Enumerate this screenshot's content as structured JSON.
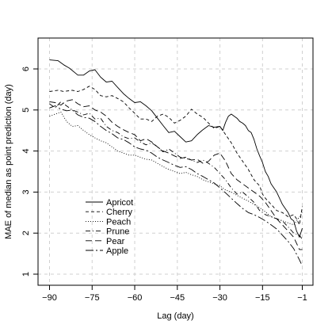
{
  "chart_data": {
    "type": "line",
    "title": "",
    "xlabel": "Lag (day)",
    "ylabel": "MAE of median as point prediction (day)",
    "xlim": [
      -90,
      -1
    ],
    "ylim": [
      1,
      6.5
    ],
    "xticks": [
      -90,
      -75,
      -60,
      -45,
      -30,
      -15,
      -1
    ],
    "xtick_labels": [
      "−90",
      "−75",
      "−60",
      "−45",
      "−30",
      "−15",
      "−1"
    ],
    "yticks": [
      1,
      2,
      3,
      4,
      5,
      6
    ],
    "ytick_labels": [
      "1",
      "2",
      "3",
      "4",
      "5",
      "6"
    ],
    "grid": true,
    "legend_position": "bottom-left",
    "series": [
      {
        "name": "Apricot",
        "dash": "none",
        "x": [
          -90,
          -87,
          -85,
          -83,
          -80,
          -78,
          -76,
          -74,
          -72,
          -70,
          -68,
          -66,
          -64,
          -62,
          -60,
          -58,
          -56,
          -54,
          -52,
          -50,
          -48,
          -46,
          -44,
          -42,
          -40,
          -38,
          -36,
          -34,
          -32,
          -30,
          -29,
          -28,
          -27,
          -26,
          -25,
          -24,
          -23,
          -22,
          -21,
          -20,
          -19,
          -18,
          -17,
          -16,
          -15,
          -14,
          -13,
          -12,
          -11,
          -10,
          -9,
          -8,
          -7,
          -6,
          -5,
          -4,
          -3,
          -2,
          -1
        ],
        "y": [
          6.22,
          6.2,
          6.1,
          6.02,
          5.85,
          5.85,
          5.95,
          5.98,
          5.8,
          5.68,
          5.7,
          5.55,
          5.4,
          5.28,
          5.18,
          5.2,
          5.1,
          4.98,
          4.8,
          4.62,
          4.45,
          4.48,
          4.35,
          4.22,
          4.25,
          4.4,
          4.52,
          4.62,
          4.58,
          4.6,
          4.5,
          4.7,
          4.85,
          4.9,
          4.85,
          4.8,
          4.72,
          4.68,
          4.62,
          4.5,
          4.45,
          4.28,
          4.05,
          3.88,
          3.72,
          3.5,
          3.38,
          3.2,
          3.1,
          3.0,
          2.85,
          2.7,
          2.6,
          2.5,
          2.35,
          2.3,
          2.05,
          1.9,
          2.12
        ]
      },
      {
        "name": "Cherry",
        "dash": "4,3",
        "x": [
          -90,
          -87,
          -85,
          -82,
          -80,
          -78,
          -76,
          -74,
          -72,
          -70,
          -68,
          -66,
          -64,
          -62,
          -60,
          -58,
          -56,
          -54,
          -52,
          -50,
          -48,
          -46,
          -44,
          -42,
          -40,
          -38,
          -36,
          -34,
          -32,
          -30,
          -28,
          -26,
          -24,
          -22,
          -20,
          -18,
          -16,
          -15,
          -14,
          -12,
          -10,
          -8,
          -6,
          -4,
          -3,
          -2,
          -1
        ],
        "y": [
          5.45,
          5.48,
          5.45,
          5.48,
          5.45,
          5.5,
          5.58,
          5.5,
          5.35,
          5.32,
          5.35,
          5.28,
          5.2,
          5.05,
          4.92,
          4.78,
          4.78,
          4.72,
          4.85,
          4.9,
          4.82,
          4.68,
          4.75,
          4.85,
          5.02,
          4.9,
          4.82,
          4.68,
          4.55,
          4.6,
          4.4,
          4.2,
          3.95,
          3.75,
          3.55,
          3.3,
          3.15,
          2.95,
          2.85,
          2.7,
          2.55,
          2.5,
          2.4,
          2.45,
          2.35,
          2.2,
          2.65
        ]
      },
      {
        "name": "Peach",
        "dash": "1,2",
        "x": [
          -90,
          -88,
          -86,
          -84,
          -82,
          -80,
          -78,
          -76,
          -74,
          -72,
          -70,
          -68,
          -66,
          -64,
          -62,
          -60,
          -58,
          -56,
          -54,
          -52,
          -50,
          -48,
          -46,
          -44,
          -42,
          -40,
          -38,
          -36,
          -34,
          -32,
          -30,
          -28,
          -26,
          -24,
          -22,
          -20,
          -18,
          -16,
          -14,
          -12,
          -10,
          -8,
          -6,
          -4,
          -2,
          -1
        ],
        "y": [
          4.85,
          4.9,
          4.95,
          4.72,
          4.6,
          4.62,
          4.5,
          4.4,
          4.32,
          4.25,
          4.2,
          4.1,
          4.0,
          3.95,
          3.9,
          3.9,
          3.85,
          3.8,
          3.78,
          3.7,
          3.62,
          3.55,
          3.5,
          3.45,
          3.48,
          3.42,
          3.38,
          3.3,
          3.25,
          3.2,
          3.15,
          3.05,
          3.0,
          2.92,
          2.85,
          2.78,
          2.7,
          2.62,
          2.52,
          2.4,
          2.35,
          2.3,
          2.25,
          2.2,
          2.4,
          2.5
        ]
      },
      {
        "name": "Prune",
        "dash": "6,3,1,3",
        "x": [
          -90,
          -88,
          -86,
          -84,
          -82,
          -80,
          -78,
          -76,
          -74,
          -72,
          -70,
          -68,
          -66,
          -64,
          -62,
          -60,
          -58,
          -56,
          -54,
          -52,
          -50,
          -48,
          -46,
          -44,
          -42,
          -40,
          -38,
          -36,
          -34,
          -32,
          -30,
          -28,
          -26,
          -24,
          -22,
          -20,
          -18,
          -16,
          -14,
          -12,
          -10,
          -8,
          -6,
          -4,
          -2,
          -1
        ],
        "y": [
          5.15,
          5.05,
          5.2,
          5.1,
          5.0,
          4.95,
          4.88,
          4.92,
          4.78,
          4.8,
          4.6,
          4.5,
          4.45,
          4.35,
          4.3,
          4.32,
          4.22,
          4.15,
          4.2,
          4.1,
          3.98,
          4.05,
          3.95,
          3.85,
          3.82,
          3.78,
          3.72,
          3.78,
          3.7,
          3.6,
          3.45,
          3.3,
          3.1,
          2.95,
          3.0,
          2.88,
          2.75,
          2.55,
          2.45,
          2.4,
          2.35,
          2.3,
          2.15,
          2.0,
          1.95,
          1.85
        ]
      },
      {
        "name": "Pear",
        "dash": "8,4",
        "x": [
          -90,
          -88,
          -86,
          -84,
          -82,
          -80,
          -78,
          -76,
          -74,
          -72,
          -70,
          -68,
          -66,
          -64,
          -62,
          -60,
          -58,
          -56,
          -54,
          -52,
          -50,
          -48,
          -46,
          -44,
          -42,
          -40,
          -38,
          -36,
          -34,
          -32,
          -30,
          -28,
          -26,
          -24,
          -22,
          -20,
          -18,
          -16,
          -14,
          -12,
          -10,
          -8,
          -6,
          -4,
          -2,
          -1
        ],
        "y": [
          5.2,
          5.18,
          5.12,
          5.22,
          5.25,
          5.15,
          5.08,
          5.1,
          5.0,
          4.95,
          4.85,
          4.7,
          4.6,
          4.52,
          4.45,
          4.4,
          4.25,
          4.3,
          4.22,
          4.1,
          4.0,
          3.95,
          3.88,
          3.82,
          3.85,
          3.78,
          3.8,
          3.7,
          3.75,
          3.9,
          3.95,
          3.75,
          3.45,
          3.3,
          3.2,
          3.1,
          3.0,
          2.9,
          2.75,
          2.55,
          2.35,
          2.2,
          2.05,
          1.9,
          1.6,
          1.6
        ]
      },
      {
        "name": "Apple",
        "dash": "10,3,2,3",
        "x": [
          -90,
          -88,
          -86,
          -84,
          -82,
          -80,
          -78,
          -76,
          -74,
          -72,
          -70,
          -68,
          -66,
          -64,
          -62,
          -60,
          -58,
          -56,
          -54,
          -52,
          -50,
          -48,
          -46,
          -44,
          -42,
          -40,
          -38,
          -36,
          -34,
          -32,
          -30,
          -28,
          -26,
          -24,
          -22,
          -20,
          -18,
          -16,
          -14,
          -12,
          -10,
          -8,
          -6,
          -4,
          -2,
          -1
        ],
        "y": [
          5.05,
          5.1,
          5.02,
          4.98,
          5.0,
          4.88,
          4.82,
          4.8,
          4.72,
          4.6,
          4.5,
          4.42,
          4.32,
          4.28,
          4.2,
          4.1,
          4.05,
          4.02,
          3.95,
          3.85,
          3.78,
          3.72,
          3.65,
          3.6,
          3.62,
          3.55,
          3.45,
          3.38,
          3.3,
          3.22,
          3.1,
          2.98,
          2.85,
          2.72,
          2.6,
          2.5,
          2.45,
          2.38,
          2.3,
          2.2,
          2.1,
          1.95,
          1.8,
          1.62,
          1.35,
          1.2
        ]
      }
    ]
  }
}
